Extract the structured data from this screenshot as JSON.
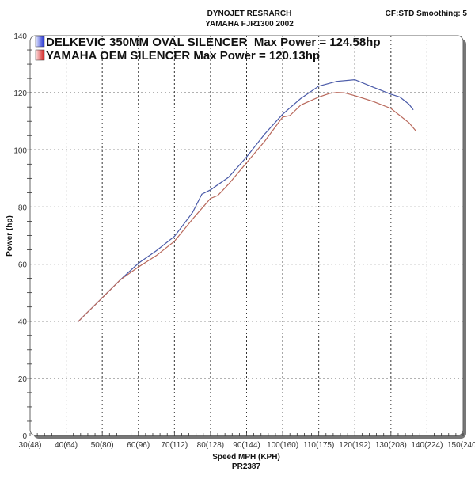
{
  "header": {
    "title_line1": "DYNOJET RESRARCH",
    "title_line2": "YAMAHA FJR1300 2002",
    "corner": "CF:STD Smoothing: 5"
  },
  "chart_data": {
    "type": "line",
    "title": "DYNOJET RESRARCH\nYAMAHA FJR1300 2002",
    "xlabel": "Speed MPH (KPH)",
    "xlabel_sub": "PR2387",
    "ylabel": "Power (hp)",
    "xlim": [
      30,
      150
    ],
    "ylim": [
      0,
      140
    ],
    "grid": true,
    "legend_position": "top-left",
    "x_ticks": [
      30,
      40,
      50,
      60,
      70,
      80,
      90,
      100,
      110,
      120,
      130,
      140,
      150
    ],
    "x_tick_labels": [
      "30(48)",
      "40(64)",
      "50(80)",
      "60(96)",
      "70(112)",
      "80(128)",
      "90(144)",
      "100(160)",
      "110(175)",
      "120(192)",
      "130(208)",
      "140(224)",
      "150(240)"
    ],
    "y_ticks": [
      0,
      20,
      40,
      60,
      80,
      100,
      120,
      140
    ],
    "y_tick_labels": [
      "0",
      "20",
      "40",
      "60",
      "80",
      "100",
      "120",
      "140"
    ],
    "series": [
      {
        "name": "DELKEVIC 350MM OVAL SILENCER  Max Power = 124.58hp",
        "color": "#4a5aa8",
        "x": [
          43.2,
          45,
          50,
          55,
          60,
          65,
          70,
          75,
          77.6,
          80,
          85,
          90,
          95,
          100,
          105,
          110,
          115,
          120,
          125,
          130,
          132.5,
          135,
          136.2
        ],
        "y": [
          39.7,
          42,
          48.2,
          54.5,
          60.3,
          64.7,
          69.7,
          78,
          84.5,
          86,
          90.4,
          97.5,
          105.5,
          112.5,
          118,
          122.3,
          124,
          124.58,
          122,
          119.5,
          118.5,
          116,
          114
        ]
      },
      {
        "name": "YAMAHA OEM SILENCER Max Power = 120.13hp",
        "color": "#b8675a",
        "x": [
          43.2,
          45,
          50,
          55,
          60,
          65,
          70,
          75,
          80,
          82,
          85,
          90,
          95,
          100,
          102,
          105,
          110,
          113,
          115,
          117,
          120,
          125,
          130,
          135,
          137
        ],
        "y": [
          39.7,
          42,
          48.2,
          54.5,
          59,
          63,
          68,
          75.7,
          83,
          84,
          88,
          95.5,
          103,
          111.5,
          112,
          115.7,
          118.5,
          119.8,
          120.13,
          120,
          119,
          117,
          114.5,
          109.5,
          106.5
        ]
      }
    ]
  }
}
